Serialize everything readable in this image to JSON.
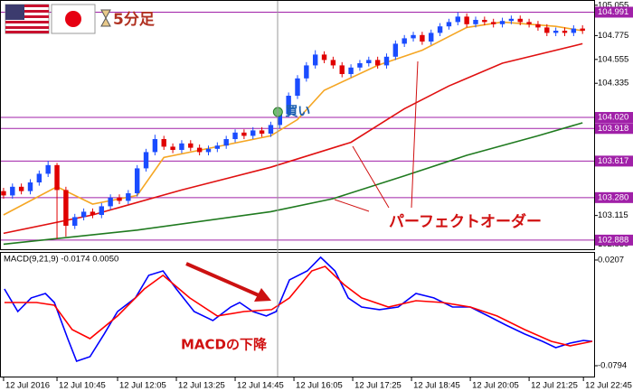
{
  "chart_data": [
    {
      "type": "candlestick",
      "title": "5分足",
      "open": [
        103.34,
        103.3,
        103.38,
        103.34,
        103.42,
        103.5,
        103.58,
        103.35,
        103.02,
        103.1,
        103.15,
        103.12,
        103.2,
        103.28,
        103.25,
        103.32,
        103.55,
        103.7,
        103.82,
        103.75,
        103.72,
        103.78,
        103.74,
        103.7,
        103.73,
        103.76,
        103.82,
        103.88,
        103.85,
        103.9,
        103.87,
        103.95,
        104.05,
        104.22,
        104.38,
        104.5,
        104.6,
        104.55,
        104.5,
        104.42,
        104.48,
        104.52,
        104.55,
        104.5,
        104.58,
        104.7,
        104.75,
        104.78,
        104.72,
        104.8,
        104.86,
        104.9,
        104.95,
        104.88,
        104.92,
        104.9,
        104.88,
        104.91,
        104.93,
        104.9,
        104.88,
        104.85,
        104.8,
        104.82,
        104.8,
        104.84
      ],
      "high": [
        103.37,
        103.41,
        103.41,
        103.45,
        103.53,
        103.62,
        103.6,
        103.38,
        103.13,
        103.18,
        103.18,
        103.23,
        103.31,
        103.31,
        103.35,
        103.58,
        103.73,
        103.86,
        103.85,
        103.78,
        103.81,
        103.81,
        103.77,
        103.76,
        103.79,
        103.85,
        103.91,
        103.91,
        103.93,
        103.93,
        103.98,
        104.08,
        104.25,
        104.41,
        104.53,
        104.64,
        104.63,
        104.58,
        104.53,
        104.51,
        104.55,
        104.58,
        104.58,
        104.61,
        104.73,
        104.78,
        104.81,
        104.81,
        104.83,
        104.89,
        104.93,
        104.99,
        104.98,
        104.95,
        104.95,
        104.93,
        104.94,
        104.96,
        104.96,
        104.93,
        104.91,
        104.88,
        104.85,
        104.85,
        104.87,
        104.87
      ],
      "low": [
        103.27,
        103.27,
        103.31,
        103.31,
        103.39,
        103.47,
        102.9,
        102.92,
        102.99,
        103.07,
        103.09,
        103.09,
        103.17,
        103.22,
        103.22,
        103.29,
        103.52,
        103.67,
        103.72,
        103.69,
        103.69,
        103.71,
        103.67,
        103.67,
        103.7,
        103.73,
        103.79,
        103.82,
        103.82,
        103.84,
        103.84,
        103.92,
        104.02,
        104.19,
        104.35,
        104.47,
        104.52,
        104.47,
        104.39,
        104.39,
        104.45,
        104.49,
        104.47,
        104.47,
        104.55,
        104.67,
        104.72,
        104.69,
        104.69,
        104.77,
        104.83,
        104.87,
        104.85,
        104.85,
        104.87,
        104.85,
        104.85,
        104.88,
        104.87,
        104.85,
        104.82,
        104.77,
        104.77,
        104.77,
        104.77,
        104.79
      ],
      "close": [
        103.3,
        103.38,
        103.34,
        103.42,
        103.5,
        103.58,
        103.35,
        103.02,
        103.1,
        103.15,
        103.12,
        103.2,
        103.28,
        103.25,
        103.32,
        103.55,
        103.7,
        103.82,
        103.75,
        103.72,
        103.78,
        103.74,
        103.7,
        103.73,
        103.76,
        103.82,
        103.88,
        103.85,
        103.9,
        103.87,
        103.95,
        104.05,
        104.22,
        104.38,
        104.5,
        104.6,
        104.55,
        104.5,
        104.42,
        104.48,
        104.52,
        104.55,
        104.5,
        104.58,
        104.7,
        104.75,
        104.78,
        104.72,
        104.8,
        104.86,
        104.9,
        104.95,
        104.88,
        104.92,
        104.9,
        104.88,
        104.91,
        104.93,
        104.9,
        104.88,
        104.85,
        104.8,
        104.82,
        104.8,
        104.84,
        104.82
      ],
      "up_color": "#1a4cff",
      "down_color": "#e00000",
      "lines": [
        {
          "color": "#f5a623",
          "x": [
            0,
            6,
            10,
            15,
            18,
            24,
            30,
            33,
            36,
            42,
            47,
            52,
            56,
            62,
            65
          ],
          "values": [
            103.12,
            103.38,
            103.22,
            103.3,
            103.65,
            103.75,
            103.85,
            104.0,
            104.27,
            104.5,
            104.64,
            104.85,
            104.9,
            104.86,
            104.82
          ]
        },
        {
          "color": "#e01010",
          "x": [
            0,
            10,
            20,
            30,
            39,
            45,
            50,
            56,
            65
          ],
          "values": [
            102.95,
            103.12,
            103.35,
            103.56,
            103.79,
            104.1,
            104.31,
            104.52,
            104.7
          ]
        },
        {
          "color": "#1f7a1f",
          "x": [
            0,
            15,
            30,
            37,
            45,
            52,
            60,
            65
          ],
          "values": [
            102.85,
            102.98,
            103.15,
            103.27,
            103.48,
            103.67,
            103.85,
            103.97
          ]
        }
      ],
      "levels": [
        104.991,
        {
          "value": 104.02,
          "label": "104.020"
        },
        103.918,
        103.617,
        {
          "value": 103.28,
          "label": "103.280"
        },
        102.888
      ],
      "level_color": "#a020a8",
      "ylim": [
        102.837,
        105.07
      ],
      "xlim": [
        -0.4,
        66.3
      ],
      "yticks": [
        105.055,
        104.775,
        104.555,
        104.335,
        103.115,
        {
          "value": 102.85,
          "label": "102.850"
        }
      ],
      "xticks": [
        {
          "value": 0,
          "label": "12 Jul 2016"
        },
        {
          "value": 6.0,
          "label": "12 Jul 10:45"
        },
        {
          "value": 12.8,
          "label": "12 Jul 12:05"
        },
        {
          "value": 19.4,
          "label": "12 Jul 13:25"
        },
        {
          "value": 26.0,
          "label": "12 Jul 14:45"
        },
        {
          "value": 32.6,
          "label": "12 Jul 16:05"
        },
        {
          "value": 39.2,
          "label": "12 Jul 17:25"
        },
        {
          "value": 45.8,
          "label": "12 Jul 18:45"
        },
        {
          "value": 52.4,
          "label": "12 Jul 20:05"
        },
        {
          "value": 59.0,
          "label": "12 Jul 21:25"
        },
        {
          "value": 65.1,
          "label": "12 Jul 22:45"
        }
      ],
      "signal": {
        "label": "買い",
        "x": 30.8,
        "y": 104.07
      },
      "annotation": "パーフェクトオーダー"
    },
    {
      "type": "line",
      "title": "MACD(9,21,9) -0.0174 0.0050",
      "series": [
        {
          "color": "#0000ff",
          "x": [
            0.1,
            1.6,
            3.1,
            4.7,
            5.7,
            7.2,
            8.2,
            9.7,
            11.3,
            12.8,
            14.8,
            16.3,
            17.9,
            19.4,
            21.4,
            23.5,
            25.5,
            26.5,
            28.0,
            29.5,
            30.6,
            32.1,
            34.1,
            35.6,
            37.2,
            38.7,
            40.2,
            42.2,
            44.3,
            46.3,
            48.3,
            50.4,
            52.4,
            54.4,
            56.4,
            58.5,
            60.5,
            62.0,
            63.6,
            65.1,
            66.1
          ],
          "values": [
            -0.0067,
            -0.0281,
            -0.0152,
            -0.011,
            -0.0195,
            -0.0537,
            -0.0751,
            -0.0708,
            -0.0494,
            -0.0281,
            -0.0152,
            0.0062,
            0.0104,
            -0.0067,
            -0.0281,
            -0.0366,
            -0.0238,
            -0.0195,
            -0.0281,
            -0.0323,
            -0.0281,
            0.0019,
            0.0104,
            0.0233,
            0.0104,
            -0.0152,
            -0.0238,
            -0.0263,
            -0.0238,
            -0.011,
            -0.0152,
            -0.0238,
            -0.0238,
            -0.0323,
            -0.0409,
            -0.0494,
            -0.0563,
            -0.0623,
            -0.058,
            -0.0554,
            -0.0563
          ]
        },
        {
          "color": "#ff0000",
          "x": [
            0.1,
            3.7,
            5.7,
            7.7,
            9.7,
            12.8,
            15.8,
            17.9,
            20.9,
            24.0,
            27.0,
            30.1,
            32.1,
            34.6,
            36.1,
            38.2,
            40.2,
            43.2,
            46.3,
            49.3,
            52.4,
            55.4,
            58.5,
            61.5,
            63.6,
            66.1
          ],
          "values": [
            -0.0195,
            -0.0195,
            -0.0221,
            -0.0452,
            -0.0537,
            -0.0323,
            -0.0067,
            0.0062,
            -0.0152,
            -0.0323,
            -0.0281,
            -0.0263,
            -0.0152,
            0.0104,
            0.0147,
            -0.0024,
            -0.0152,
            -0.0238,
            -0.0178,
            -0.0195,
            -0.0238,
            -0.0323,
            -0.0452,
            -0.0563,
            -0.0606,
            -0.0563
          ]
        }
      ],
      "ylim": [
        -0.0905,
        0.0275
      ],
      "xlim": [
        -0.4,
        66.3
      ],
      "yticks": [
        0.0207,
        -0.0794
      ],
      "annotation": "MACDの下降"
    }
  ]
}
